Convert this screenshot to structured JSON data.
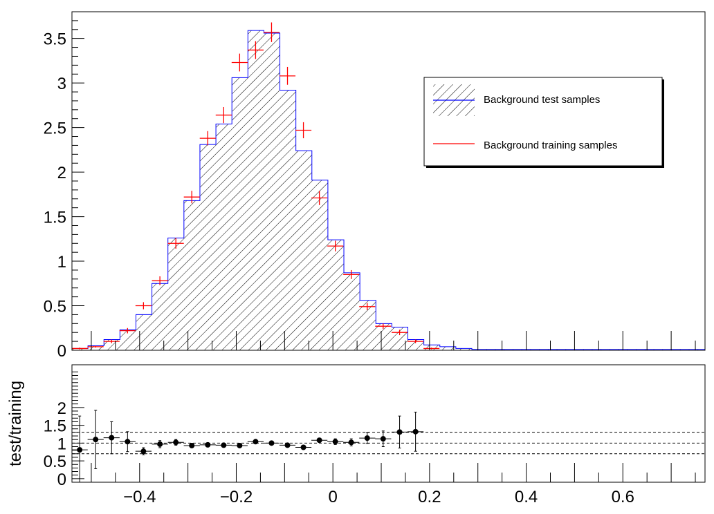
{
  "chart_data": [
    {
      "type": "histogram",
      "panel": "upper",
      "xlim": [
        -0.54,
        0.77
      ],
      "ylim": [
        0,
        3.8
      ],
      "yticks": [
        0,
        0.5,
        1,
        1.5,
        2,
        2.5,
        3,
        3.5
      ],
      "ytick_labels": [
        "0",
        "0.5",
        "1",
        "1.5",
        "2",
        "2.5",
        "3",
        "3.5"
      ],
      "bin_width": 0.0331,
      "bin_edges_start": -0.54,
      "series": [
        {
          "name": "Background test samples",
          "color": "#0000ff",
          "fill": "hatched",
          "values": [
            0.02,
            0.05,
            0.12,
            0.23,
            0.4,
            0.75,
            1.26,
            1.68,
            2.31,
            2.54,
            3.06,
            3.59,
            3.56,
            2.92,
            2.24,
            1.91,
            1.24,
            0.87,
            0.56,
            0.3,
            0.26,
            0.12,
            0.06,
            0.04,
            0.02,
            0.01,
            0.01,
            0.01,
            0.01,
            0.01,
            0.01,
            0.01,
            0.01,
            0.01,
            0.01,
            0.01,
            0.01,
            0.01,
            0.01,
            0.01
          ]
        },
        {
          "name": "Background training samples",
          "color": "#ff0000",
          "style": "crosses",
          "x": [
            -0.524,
            -0.491,
            -0.458,
            -0.425,
            -0.392,
            -0.358,
            -0.325,
            -0.292,
            -0.259,
            -0.226,
            -0.193,
            -0.16,
            -0.127,
            -0.094,
            -0.061,
            -0.028,
            0.005,
            0.038,
            0.071,
            0.104,
            0.138,
            0.171,
            0.204
          ],
          "values": [
            0.02,
            0.04,
            0.1,
            0.22,
            0.5,
            0.78,
            1.2,
            1.72,
            2.38,
            2.64,
            3.23,
            3.37,
            3.57,
            3.08,
            2.47,
            1.71,
            1.17,
            0.85,
            0.49,
            0.27,
            0.2,
            0.1,
            0.02
          ],
          "errors": [
            0.01,
            0.01,
            0.02,
            0.03,
            0.04,
            0.05,
            0.06,
            0.07,
            0.08,
            0.09,
            0.1,
            0.1,
            0.11,
            0.1,
            0.09,
            0.08,
            0.06,
            0.05,
            0.04,
            0.03,
            0.03,
            0.02,
            0.01
          ]
        }
      ],
      "legend": {
        "placement": "top-right",
        "entries": [
          "Background test samples",
          "Background training samples"
        ]
      }
    },
    {
      "type": "scatter",
      "panel": "lower",
      "ylabel": "test/training",
      "xlim": [
        -0.54,
        0.77
      ],
      "ylim": [
        -0.1,
        3.2
      ],
      "yticks": [
        0,
        0.5,
        1,
        1.5,
        2
      ],
      "ytick_labels": [
        "0",
        "0.5",
        "1",
        "1.5",
        "2"
      ],
      "xticks": [
        -0.4,
        -0.2,
        0,
        0.2,
        0.4,
        0.6
      ],
      "xtick_labels": [
        "−0.4",
        "−0.2",
        "0",
        "0.2",
        "0.4",
        "0.6"
      ],
      "reference_lines": [
        0.7,
        1.0,
        1.3
      ],
      "x_halfwidth": 0.0166,
      "x": [
        -0.524,
        -0.491,
        -0.458,
        -0.425,
        -0.392,
        -0.358,
        -0.325,
        -0.292,
        -0.259,
        -0.226,
        -0.193,
        -0.16,
        -0.127,
        -0.094,
        -0.061,
        -0.028,
        0.005,
        0.038,
        0.071,
        0.104,
        0.138,
        0.171
      ],
      "y": [
        0.81,
        1.1,
        1.15,
        1.04,
        0.77,
        0.97,
        1.02,
        0.93,
        0.95,
        0.94,
        0.93,
        1.04,
        1.0,
        0.94,
        0.88,
        1.08,
        1.04,
        1.02,
        1.14,
        1.12,
        1.31,
        1.32
      ],
      "yerr": [
        0.95,
        0.82,
        0.45,
        0.28,
        0.1,
        0.1,
        0.08,
        0.06,
        0.05,
        0.05,
        0.04,
        0.04,
        0.04,
        0.04,
        0.05,
        0.06,
        0.08,
        0.1,
        0.15,
        0.22,
        0.45,
        0.55
      ]
    }
  ]
}
